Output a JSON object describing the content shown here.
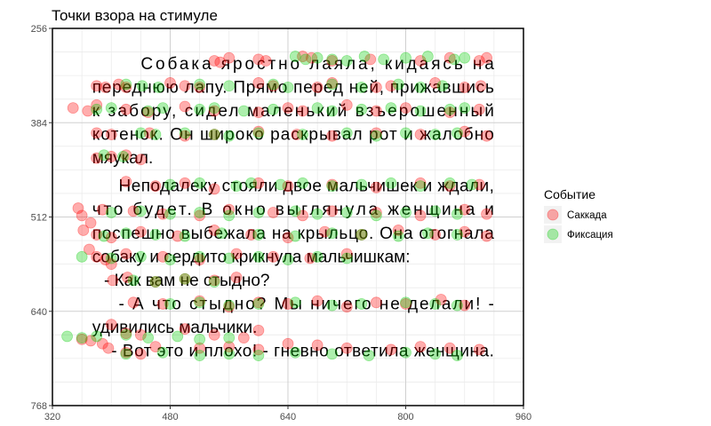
{
  "chart_data": {
    "type": "scatter",
    "title": "Точки взора на стимуле",
    "xlabel": "",
    "ylabel": "",
    "xlim": [
      320,
      960
    ],
    "ylim": [
      768,
      256
    ],
    "y_reversed": true,
    "x_ticks": [
      320,
      480,
      640,
      800,
      960
    ],
    "y_ticks": [
      256,
      384,
      512,
      640,
      768
    ],
    "grid": true,
    "legend": {
      "title": "Событие",
      "position": "right"
    },
    "stimulus_lines": [
      {
        "text": "Собака яростно лаяла, кидаясь на",
        "x": 440,
        "y": 304,
        "justify_to": 920
      },
      {
        "text": "переднюю лапу. Прямо перед ней, прижавшись",
        "x": 374,
        "y": 336,
        "justify_to": 920
      },
      {
        "text": "к забору, сидел маленький взъерошенный",
        "x": 374,
        "y": 368,
        "justify_to": 920
      },
      {
        "text": "котенок. Он широко раскрывал рот и жалобно",
        "x": 374,
        "y": 400,
        "justify_to": 920
      },
      {
        "text": "мяукал.",
        "x": 374,
        "y": 432
      },
      {
        "text": "Неподалеку стояли двое мальчишек и ждали,",
        "x": 410,
        "y": 470,
        "justify_to": 920
      },
      {
        "text": "что будет. В окно выглянула женщина и",
        "x": 374,
        "y": 502,
        "justify_to": 920
      },
      {
        "text": "поспешно выбежала на крыльцо. Она отогнала",
        "x": 374,
        "y": 534,
        "justify_to": 920
      },
      {
        "text": "собаку и сердито крикнула мальчишкам:",
        "x": 374,
        "y": 566
      },
      {
        "text": "- Как вам не стыдно?",
        "x": 390,
        "y": 598
      },
      {
        "text": "- А что стыдно? Мы ничего не делали! -",
        "x": 410,
        "y": 630,
        "justify_to": 920
      },
      {
        "text": "удивились мальчики.",
        "x": 374,
        "y": 662
      },
      {
        "text": "- Вот это и плохо! - гневно ответила женщина.",
        "x": 400,
        "y": 694,
        "justify_to": 920
      }
    ],
    "series": [
      {
        "name": "Саккада",
        "color": "#ff0000",
        "points": [
          [
            540,
            300
          ],
          [
            548,
            302
          ],
          [
            560,
            296
          ],
          [
            600,
            298
          ],
          [
            610,
            300
          ],
          [
            660,
            294
          ],
          [
            672,
            296
          ],
          [
            700,
            300
          ],
          [
            752,
            298
          ],
          [
            820,
            300
          ],
          [
            860,
            296
          ],
          [
            900,
            300
          ],
          [
            910,
            296
          ],
          [
            380,
            334
          ],
          [
            392,
            336
          ],
          [
            410,
            332
          ],
          [
            420,
            336
          ],
          [
            480,
            330
          ],
          [
            500,
            334
          ],
          [
            520,
            336
          ],
          [
            600,
            330
          ],
          [
            620,
            334
          ],
          [
            680,
            336
          ],
          [
            700,
            330
          ],
          [
            760,
            336
          ],
          [
            780,
            334
          ],
          [
            840,
            330
          ],
          [
            880,
            336
          ],
          [
            902,
            334
          ],
          [
            348,
            364
          ],
          [
            368,
            368
          ],
          [
            380,
            360
          ],
          [
            420,
            366
          ],
          [
            450,
            370
          ],
          [
            500,
            362
          ],
          [
            540,
            368
          ],
          [
            600,
            370
          ],
          [
            640,
            364
          ],
          [
            660,
            368
          ],
          [
            720,
            360
          ],
          [
            760,
            368
          ],
          [
            800,
            364
          ],
          [
            860,
            370
          ],
          [
            900,
            366
          ],
          [
            380,
            398
          ],
          [
            400,
            400
          ],
          [
            452,
            398
          ],
          [
            500,
            402
          ],
          [
            540,
            400
          ],
          [
            600,
            396
          ],
          [
            652,
            400
          ],
          [
            700,
            402
          ],
          [
            760,
            398
          ],
          [
            820,
            400
          ],
          [
            880,
            396
          ],
          [
            910,
            402
          ],
          [
            380,
            432
          ],
          [
            400,
            430
          ],
          [
            420,
            428
          ],
          [
            440,
            434
          ],
          [
            420,
            464
          ],
          [
            460,
            470
          ],
          [
            500,
            466
          ],
          [
            540,
            474
          ],
          [
            600,
            466
          ],
          [
            640,
            470
          ],
          [
            700,
            468
          ],
          [
            760,
            472
          ],
          [
            820,
            466
          ],
          [
            860,
            470
          ],
          [
            900,
            468
          ],
          [
            355,
            500
          ],
          [
            360,
            510
          ],
          [
            372,
            520
          ],
          [
            388,
            502
          ],
          [
            430,
            504
          ],
          [
            470,
            508
          ],
          [
            520,
            510
          ],
          [
            560,
            502
          ],
          [
            620,
            506
          ],
          [
            660,
            510
          ],
          [
            700,
            504
          ],
          [
            760,
            506
          ],
          [
            820,
            510
          ],
          [
            880,
            502
          ],
          [
            910,
            508
          ],
          [
            362,
            530
          ],
          [
            380,
            536
          ],
          [
            400,
            540
          ],
          [
            440,
            532
          ],
          [
            490,
            538
          ],
          [
            540,
            530
          ],
          [
            590,
            536
          ],
          [
            640,
            540
          ],
          [
            690,
            532
          ],
          [
            740,
            536
          ],
          [
            790,
            530
          ],
          [
            840,
            536
          ],
          [
            880,
            532
          ],
          [
            910,
            538
          ],
          [
            370,
            556
          ],
          [
            380,
            566
          ],
          [
            392,
            570
          ],
          [
            400,
            576
          ],
          [
            420,
            562
          ],
          [
            470,
            566
          ],
          [
            520,
            570
          ],
          [
            570,
            562
          ],
          [
            620,
            566
          ],
          [
            670,
            568
          ],
          [
            720,
            562
          ],
          [
            402,
            598
          ],
          [
            422,
            594
          ],
          [
            460,
            600
          ],
          [
            500,
            596
          ],
          [
            540,
            598
          ],
          [
            570,
            594
          ],
          [
            430,
            628
          ],
          [
            470,
            630
          ],
          [
            520,
            626
          ],
          [
            560,
            634
          ],
          [
            600,
            628
          ],
          [
            640,
            630
          ],
          [
            680,
            626
          ],
          [
            720,
            634
          ],
          [
            760,
            628
          ],
          [
            800,
            630
          ],
          [
            848,
            624
          ],
          [
            880,
            632
          ],
          [
            400,
            658
          ],
          [
            420,
            670
          ],
          [
            440,
            672
          ],
          [
            500,
            664
          ],
          [
            540,
            672
          ],
          [
            580,
            676
          ],
          [
            600,
            666
          ],
          [
            360,
            678
          ],
          [
            372,
            680
          ],
          [
            388,
            684
          ],
          [
            396,
            690
          ],
          [
            420,
            696
          ],
          [
            440,
            698
          ],
          [
            460,
            688
          ],
          [
            520,
            690
          ],
          [
            560,
            688
          ],
          [
            600,
            692
          ],
          [
            640,
            684
          ],
          [
            680,
            686
          ],
          [
            720,
            690
          ],
          [
            780,
            692
          ],
          [
            820,
            688
          ],
          [
            860,
            690
          ],
          [
            900,
            692
          ]
        ]
      },
      {
        "name": "Фиксация",
        "color": "#00cc00",
        "points": [
          [
            650,
            294
          ],
          [
            664,
            298
          ],
          [
            680,
            296
          ],
          [
            700,
            298
          ],
          [
            720,
            300
          ],
          [
            744,
            294
          ],
          [
            770,
            298
          ],
          [
            800,
            296
          ],
          [
            830,
            294
          ],
          [
            866,
            298
          ],
          [
            880,
            296
          ],
          [
            420,
            332
          ],
          [
            442,
            334
          ],
          [
            464,
            336
          ],
          [
            520,
            332
          ],
          [
            560,
            334
          ],
          [
            620,
            332
          ],
          [
            640,
            336
          ],
          [
            700,
            332
          ],
          [
            740,
            336
          ],
          [
            790,
            332
          ],
          [
            820,
            336
          ],
          [
            850,
            334
          ],
          [
            380,
            366
          ],
          [
            400,
            364
          ],
          [
            450,
            368
          ],
          [
            470,
            364
          ],
          [
            520,
            366
          ],
          [
            540,
            364
          ],
          [
            580,
            368
          ],
          [
            620,
            366
          ],
          [
            680,
            364
          ],
          [
            700,
            368
          ],
          [
            740,
            366
          ],
          [
            780,
            364
          ],
          [
            820,
            368
          ],
          [
            860,
            366
          ],
          [
            880,
            364
          ],
          [
            440,
            398
          ],
          [
            460,
            400
          ],
          [
            500,
            398
          ],
          [
            540,
            400
          ],
          [
            560,
            402
          ],
          [
            600,
            398
          ],
          [
            660,
            400
          ],
          [
            720,
            398
          ],
          [
            760,
            402
          ],
          [
            800,
            398
          ],
          [
            840,
            400
          ],
          [
            870,
            398
          ],
          [
            390,
            428
          ],
          [
            416,
            430
          ],
          [
            480,
            468
          ],
          [
            520,
            466
          ],
          [
            570,
            470
          ],
          [
            590,
            466
          ],
          [
            630,
            468
          ],
          [
            660,
            466
          ],
          [
            700,
            470
          ],
          [
            740,
            468
          ],
          [
            780,
            466
          ],
          [
            820,
            470
          ],
          [
            860,
            466
          ],
          [
            890,
            468
          ],
          [
            400,
            506
          ],
          [
            440,
            504
          ],
          [
            480,
            508
          ],
          [
            520,
            506
          ],
          [
            560,
            510
          ],
          [
            600,
            506
          ],
          [
            650,
            504
          ],
          [
            680,
            508
          ],
          [
            720,
            506
          ],
          [
            760,
            510
          ],
          [
            800,
            506
          ],
          [
            840,
            504
          ],
          [
            870,
            508
          ],
          [
            390,
            538
          ],
          [
            420,
            534
          ],
          [
            460,
            536
          ],
          [
            500,
            538
          ],
          [
            550,
            534
          ],
          [
            600,
            536
          ],
          [
            650,
            538
          ],
          [
            700,
            534
          ],
          [
            740,
            536
          ],
          [
            790,
            538
          ],
          [
            830,
            534
          ],
          [
            870,
            536
          ],
          [
            360,
            566
          ],
          [
            400,
            568
          ],
          [
            440,
            566
          ],
          [
            480,
            570
          ],
          [
            520,
            566
          ],
          [
            560,
            568
          ],
          [
            600,
            566
          ],
          [
            640,
            570
          ],
          [
            680,
            566
          ],
          [
            720,
            568
          ],
          [
            430,
            598
          ],
          [
            460,
            600
          ],
          [
            500,
            596
          ],
          [
            540,
            600
          ],
          [
            480,
            630
          ],
          [
            520,
            628
          ],
          [
            560,
            632
          ],
          [
            600,
            630
          ],
          [
            650,
            628
          ],
          [
            700,
            632
          ],
          [
            740,
            630
          ],
          [
            800,
            628
          ],
          [
            840,
            630
          ],
          [
            870,
            632
          ],
          [
            340,
            674
          ],
          [
            360,
            676
          ],
          [
            380,
            674
          ],
          [
            420,
            672
          ],
          [
            450,
            676
          ],
          [
            490,
            674
          ],
          [
            520,
            678
          ],
          [
            560,
            676
          ],
          [
            420,
            698
          ],
          [
            470,
            696
          ],
          [
            520,
            700
          ],
          [
            560,
            698
          ],
          [
            600,
            700
          ],
          [
            650,
            696
          ],
          [
            700,
            698
          ],
          [
            750,
            700
          ],
          [
            800,
            696
          ],
          [
            840,
            698
          ],
          [
            870,
            700
          ]
        ]
      }
    ]
  }
}
